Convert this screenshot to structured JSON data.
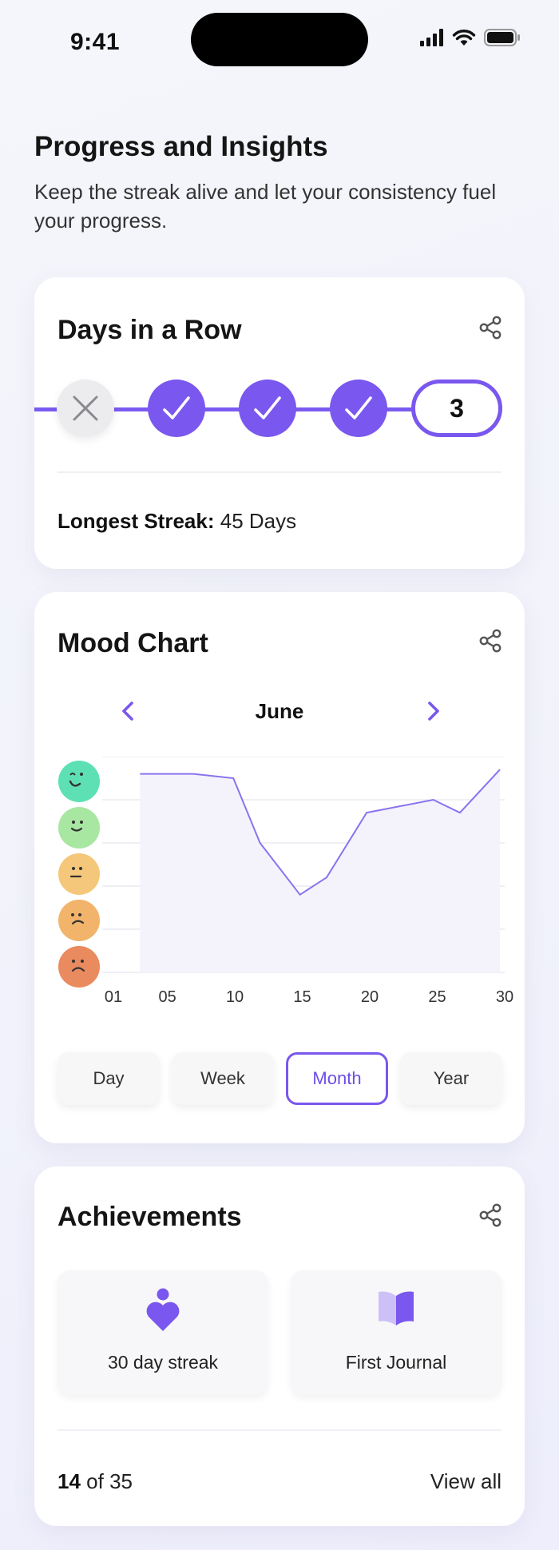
{
  "status_bar": {
    "time": "9:41"
  },
  "header": {
    "title": "Progress and Insights",
    "subtitle": "Keep the streak alive and let your consistency fuel your progress."
  },
  "streak_card": {
    "title": "Days in a Row",
    "days": [
      "missed",
      "done",
      "done",
      "done"
    ],
    "current_streak": "3",
    "longest_label": "Longest Streak:",
    "longest_value": "45 Days"
  },
  "mood_card": {
    "title": "Mood Chart",
    "month": "June",
    "moods": [
      "very-happy",
      "happy",
      "neutral",
      "sad",
      "very-sad"
    ],
    "range_buttons": [
      "Day",
      "Week",
      "Month",
      "Year"
    ],
    "active_range": "Month"
  },
  "chart_data": {
    "type": "area",
    "x_tick_labels": [
      "01",
      "05",
      "10",
      "15",
      "20",
      "25",
      "30"
    ],
    "x": [
      3,
      7,
      10,
      12,
      15,
      17,
      20,
      25,
      27,
      30
    ],
    "y": [
      4.6,
      4.6,
      4.5,
      3.0,
      1.8,
      2.2,
      3.7,
      4.0,
      3.7,
      4.7
    ],
    "ylim": [
      0,
      5
    ],
    "xlim": [
      1,
      30
    ],
    "y_categories": [
      "very-sad",
      "sad",
      "neutral",
      "happy",
      "very-happy"
    ],
    "grid": true,
    "line_color": "#8b72ef",
    "fill_color": "#f4f3fc"
  },
  "achievements": {
    "title": "Achievements",
    "items": [
      {
        "label": "30 day streak",
        "icon": "streak-heart-icon"
      },
      {
        "label": "First Journal",
        "icon": "book-icon"
      }
    ],
    "earned": "14",
    "total_text": "of 35",
    "view_all": "View all"
  },
  "colors": {
    "accent": "#7a57ee",
    "text": "#151515"
  }
}
